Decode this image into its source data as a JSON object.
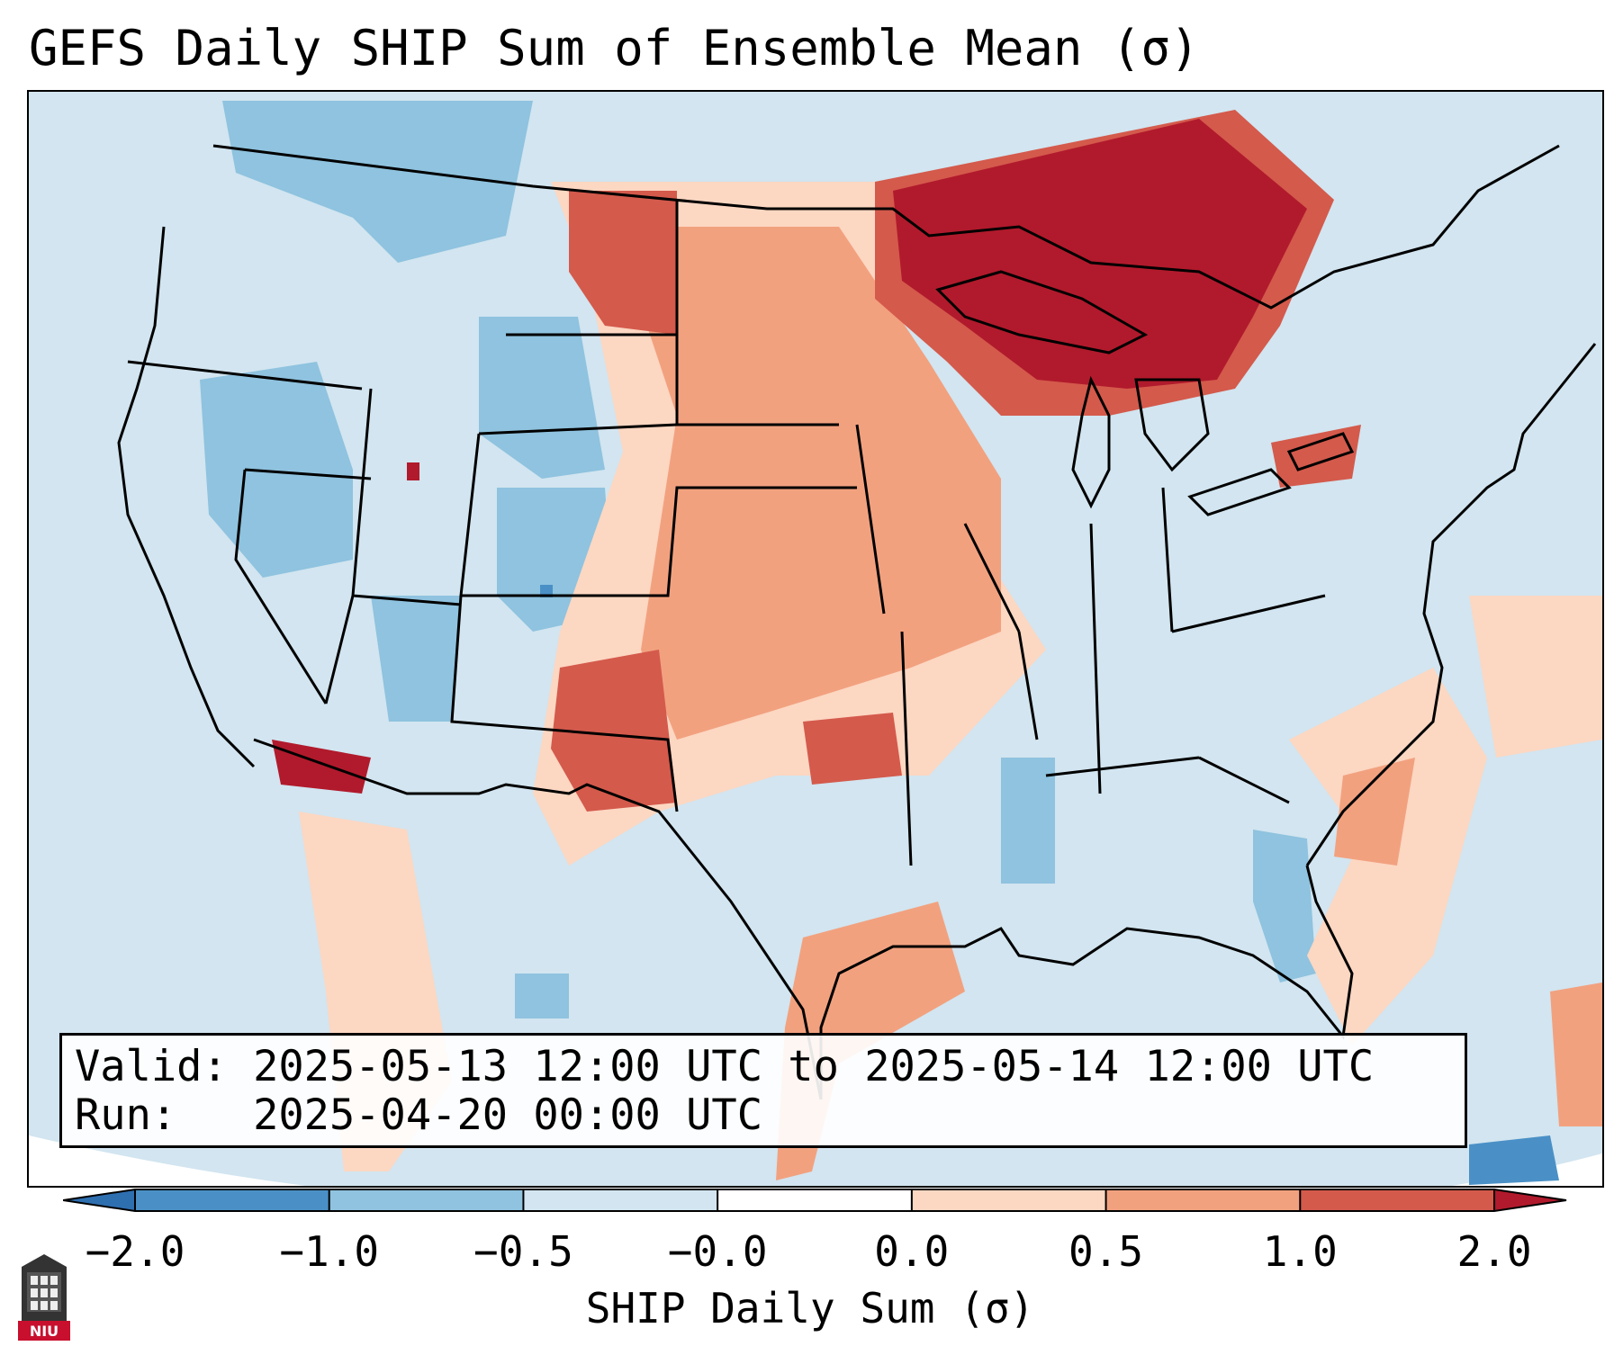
{
  "title": "GEFS Daily SHIP Sum of Ensemble Mean (σ)",
  "info": {
    "valid_line": "Valid: 2025-05-13 12:00 UTC to 2025-05-14 12:00 UTC",
    "run_line": "Run:   2025-04-20 00:00 UTC"
  },
  "colorbar": {
    "label": "SHIP Daily Sum (σ)",
    "ticks": [
      "−2.0",
      "−1.0",
      "−0.5",
      "−0.0",
      "0.0",
      "0.5",
      "1.0",
      "2.0"
    ],
    "bin_colors": [
      "#2e6fb0",
      "#4a90c6",
      "#8fc3df",
      "#d2e5f0",
      "#ffffff",
      "#fcd7c2",
      "#f2a17f",
      "#d45a4c",
      "#b11a2c"
    ]
  },
  "map": {
    "region": "continental-united-states",
    "field_colors": {
      "neg_strong": "#4a90c6",
      "neg": "#8fc3df",
      "neutral_neg": "#d2e5f0",
      "neutral_pos": "#fcd7c2",
      "pos": "#f2a17f",
      "pos_strong": "#d45a4c",
      "pos_extreme": "#b11a2c"
    }
  },
  "logo": {
    "text": "NIU",
    "color": "#c8102e"
  }
}
